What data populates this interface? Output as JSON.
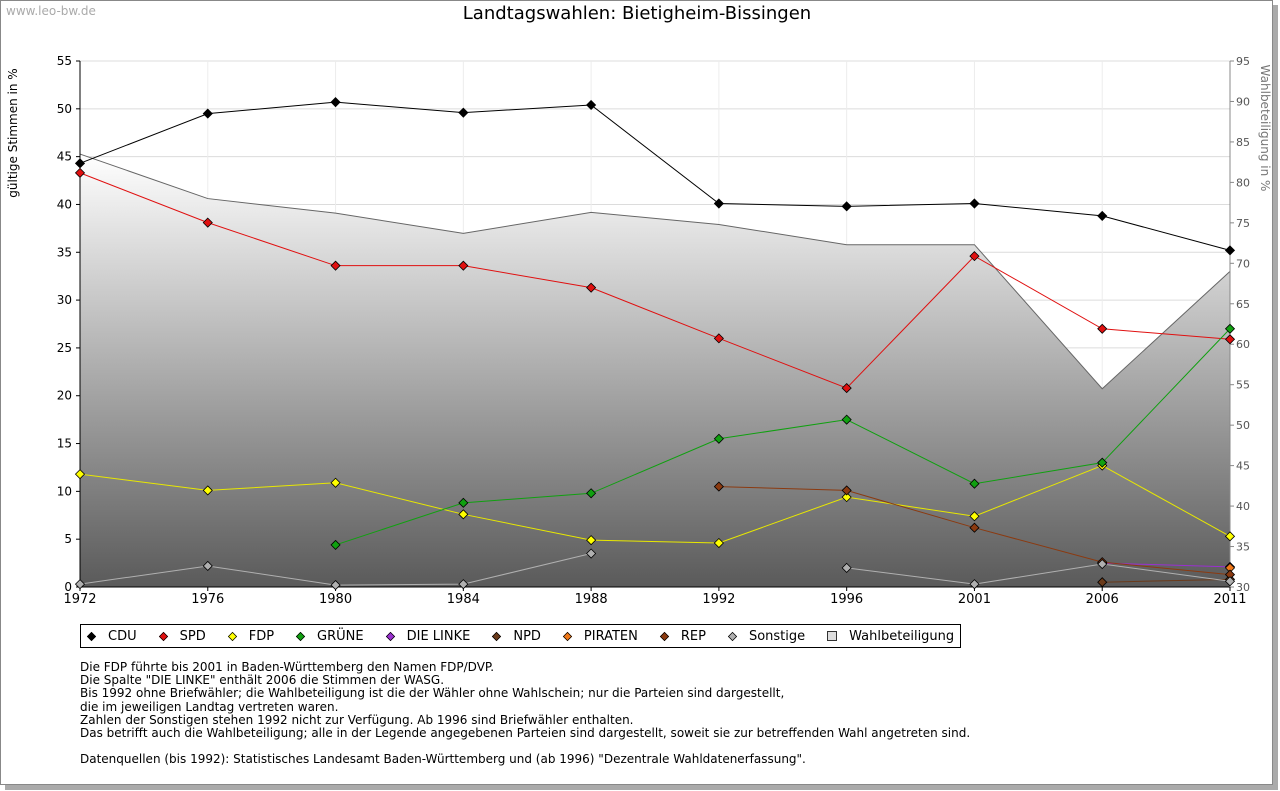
{
  "watermark": "www.leo-bw.de",
  "chart_data": {
    "type": "line",
    "title": "Landtagswahlen: Bietigheim-Bissingen",
    "ylabel": "gültige Stimmen in %",
    "y2label": "Wahlbeteiligung in %",
    "ylim": [
      0,
      55
    ],
    "y2lim": [
      30,
      95
    ],
    "yticks": [
      "0",
      "5",
      "10",
      "15",
      "20",
      "25",
      "30",
      "35",
      "40",
      "45",
      "50",
      "55"
    ],
    "y2ticks": [
      "30",
      "35",
      "40",
      "45",
      "50",
      "55",
      "60",
      "65",
      "70",
      "75",
      "80",
      "85",
      "90",
      "95"
    ],
    "categories": [
      "1972",
      "1976",
      "1980",
      "1984",
      "1988",
      "1992",
      "1996",
      "2001",
      "2006",
      "2011"
    ],
    "grid": true,
    "turnout": {
      "name": "Wahlbeteiligung",
      "values": [
        83.5,
        78.0,
        76.2,
        73.7,
        76.3,
        74.8,
        72.3,
        72.3,
        54.5,
        69.0
      ]
    },
    "series": [
      {
        "name": "CDU",
        "color": "#000000",
        "values": [
          44.3,
          49.5,
          50.7,
          49.6,
          50.4,
          40.1,
          39.8,
          40.1,
          38.8,
          35.2
        ]
      },
      {
        "name": "SPD",
        "color": "#e01010",
        "values": [
          43.3,
          38.1,
          33.6,
          33.6,
          31.3,
          26.0,
          20.8,
          34.6,
          27.0,
          25.9
        ]
      },
      {
        "name": "FDP",
        "color": "#ffff00",
        "values": [
          11.8,
          10.1,
          10.9,
          7.6,
          4.9,
          4.6,
          9.4,
          7.4,
          12.7,
          5.3
        ]
      },
      {
        "name": "GRÜNE",
        "color": "#10a010",
        "values": [
          null,
          null,
          4.4,
          8.8,
          9.8,
          15.5,
          17.5,
          10.8,
          13.0,
          27.0
        ]
      },
      {
        "name": "DIE LINKE",
        "color": "#9a30d0",
        "values": [
          null,
          null,
          null,
          null,
          null,
          null,
          null,
          null,
          2.5,
          2.1
        ]
      },
      {
        "name": "NPD",
        "color": "#6a3a1a",
        "values": [
          null,
          null,
          null,
          null,
          null,
          null,
          null,
          null,
          0.5,
          0.8
        ]
      },
      {
        "name": "PIRATEN",
        "color": "#f07818",
        "values": [
          null,
          null,
          null,
          null,
          null,
          null,
          null,
          null,
          null,
          2.0
        ]
      },
      {
        "name": "REP",
        "color": "#8b3a10",
        "values": [
          null,
          null,
          null,
          null,
          null,
          10.5,
          10.1,
          6.2,
          2.6,
          1.3
        ]
      },
      {
        "name": "Sonstige",
        "color": "#b0b0b0",
        "values": [
          0.3,
          2.2,
          0.2,
          0.3,
          3.5,
          null,
          2.0,
          0.3,
          2.4,
          0.6
        ]
      }
    ]
  },
  "legend": [
    {
      "label": "CDU",
      "color": "#000000",
      "shape": "diamond"
    },
    {
      "label": "SPD",
      "color": "#e01010",
      "shape": "diamond"
    },
    {
      "label": "FDP",
      "color": "#ffff00",
      "shape": "diamond"
    },
    {
      "label": "GRÜNE",
      "color": "#10a010",
      "shape": "diamond"
    },
    {
      "label": "DIE LINKE",
      "color": "#9a30d0",
      "shape": "diamond"
    },
    {
      "label": "NPD",
      "color": "#6a3a1a",
      "shape": "diamond"
    },
    {
      "label": "PIRATEN",
      "color": "#f07818",
      "shape": "diamond"
    },
    {
      "label": "REP",
      "color": "#8b3a10",
      "shape": "diamond"
    },
    {
      "label": "Sonstige",
      "color": "#b0b0b0",
      "shape": "diamond"
    },
    {
      "label": "Wahlbeteiligung",
      "color": "#dddddd",
      "shape": "square"
    }
  ],
  "notes": [
    "Die FDP führte bis 2001 in Baden-Württemberg den Namen FDP/DVP.",
    "Die Spalte \"DIE LINKE\" enthält 2006 die Stimmen der WASG.",
    "Bis 1992 ohne Briefwähler; die Wahlbeteiligung ist die der Wähler ohne Wahlschein; nur die Parteien sind dargestellt,",
    "die im jeweiligen Landtag vertreten waren.",
    "Zahlen der Sonstigen stehen 1992 nicht zur Verfügung. Ab 1996 sind Briefwähler enthalten.",
    "Das betrifft auch die Wahlbeteiligung; alle in der Legende angegebenen Parteien sind dargestellt, soweit sie zur betreffenden Wahl angetreten sind."
  ],
  "source": "Datenquellen (bis 1992): Statistisches Landesamt Baden-Württemberg und (ab 1996) \"Dezentrale Wahldatenerfassung\"."
}
